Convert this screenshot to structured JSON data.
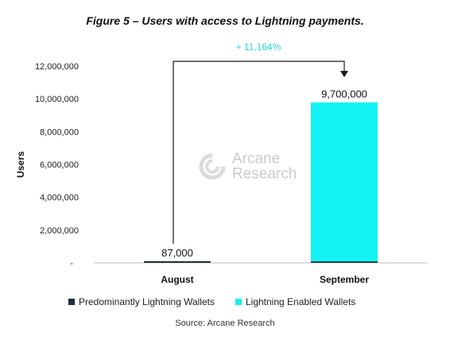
{
  "title": "Figure 5 – Users with access to Lightning payments.",
  "source": "Source: Arcane Research",
  "watermark": {
    "line1": "Arcane",
    "line2": "Research"
  },
  "colors": {
    "predominantly": "#1f2d3d",
    "enabled": "#12f3f3",
    "growth_label": "#2ad4d4",
    "arrow": "#1a1a1a"
  },
  "chart_data": {
    "type": "bar",
    "categories": [
      "August",
      "September"
    ],
    "series": [
      {
        "name": "Predominantly Lightning Wallets",
        "values": [
          87000,
          87000
        ]
      },
      {
        "name": "Lightning Enabled Wallets",
        "values": [
          0,
          9700000
        ]
      }
    ],
    "data_labels": [
      "87,000",
      "9,700,000"
    ],
    "annotation": "+ 11,164%",
    "ylabel": "Users",
    "ylim": [
      0,
      12000000
    ],
    "yticks": [
      0,
      2000000,
      4000000,
      6000000,
      8000000,
      10000000,
      12000000
    ],
    "ytick_labels": [
      "-",
      "2,000,000",
      "4,000,000",
      "6,000,000",
      "8,000,000",
      "10,000,000",
      "12,000,000"
    ],
    "legend_position": "bottom",
    "grid": false
  }
}
